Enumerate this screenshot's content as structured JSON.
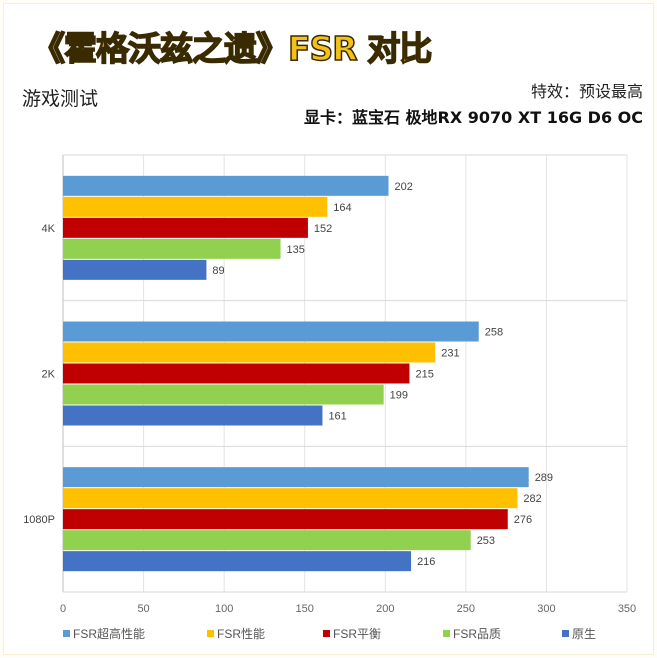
{
  "header": {
    "title": "《霍格沃兹之遗》FSR 对比",
    "subtitle": "游戏测试",
    "effects": "特效：预设最高",
    "gpu": "显卡：蓝宝石 极地RX 9070 XT 16G D6 OC"
  },
  "chart_data": {
    "type": "bar",
    "orientation": "horizontal",
    "title": "《霍格沃兹之遗》FSR 对比",
    "categories": [
      "4K",
      "2K",
      "1080P"
    ],
    "series": [
      {
        "name": "FSR超高性能",
        "color": "#5b9bd5",
        "values": [
          202,
          258,
          289
        ]
      },
      {
        "name": "FSR性能",
        "color": "#ffc000",
        "values": [
          164,
          231,
          282
        ]
      },
      {
        "name": "FSR平衡",
        "color": "#c00000",
        "values": [
          152,
          215,
          276
        ]
      },
      {
        "name": "FSR品质",
        "color": "#92d050",
        "values": [
          135,
          199,
          253
        ]
      },
      {
        "name": "原生",
        "color": "#4472c4",
        "values": [
          89,
          161,
          216
        ]
      }
    ],
    "xlim": [
      0,
      350
    ],
    "xticks": [
      "0",
      "50",
      "100",
      "150",
      "200",
      "250",
      "300",
      "350"
    ],
    "grid": true,
    "legend": "bottom"
  }
}
